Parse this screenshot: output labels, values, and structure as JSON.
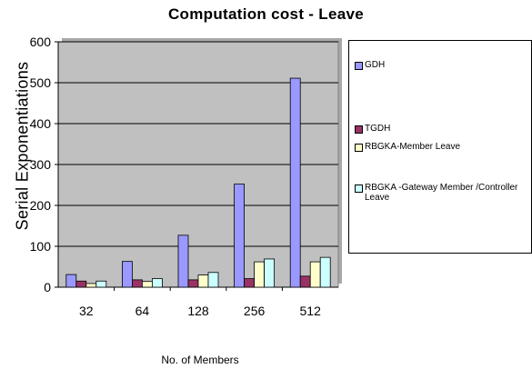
{
  "chart_data": {
    "type": "bar",
    "title": "Computation cost - Leave",
    "xlabel": "No. of Members",
    "ylabel": "Serial   Exponentiations",
    "categories": [
      "32",
      "64",
      "128",
      "256",
      "512"
    ],
    "ylim": [
      0,
      600
    ],
    "yticks": [
      "0",
      "100",
      "200",
      "300",
      "400",
      "500",
      "600"
    ],
    "grid": true,
    "legend_position": "right",
    "series": [
      {
        "name": "GDH",
        "values": [
          31,
          63,
          127,
          252,
          511
        ],
        "color": "#9999ff"
      },
      {
        "name": "TGDH",
        "values": [
          15,
          18,
          18,
          21,
          27
        ],
        "color": "#993366"
      },
      {
        "name": "RBGKA-Member Leave",
        "values": [
          9,
          14,
          30,
          62,
          62
        ],
        "color": "#ffffcc"
      },
      {
        "name": "RBGKA -Gateway Member /Controller Leave",
        "values": [
          15,
          21,
          36,
          69,
          73
        ],
        "color": "#ccffff"
      }
    ],
    "plot_background": "#c0c0c0"
  }
}
